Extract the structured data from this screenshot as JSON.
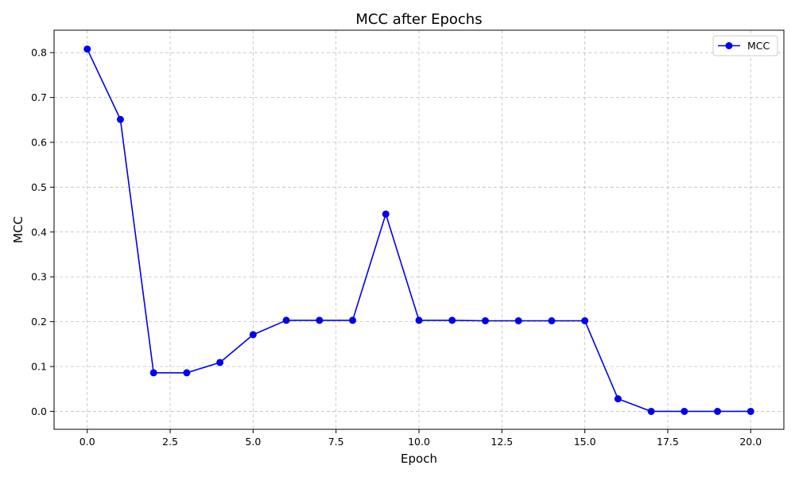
{
  "chart_data": {
    "type": "line",
    "title": "MCC after Epochs",
    "xlabel": "Epoch",
    "ylabel": "MCC",
    "xlim": [
      -1,
      21
    ],
    "ylim": [
      -0.04,
      0.85
    ],
    "xticks": [
      0.0,
      2.5,
      5.0,
      7.5,
      10.0,
      12.5,
      15.0,
      17.5,
      20.0
    ],
    "xtick_labels": [
      "0.0",
      "2.5",
      "5.0",
      "7.5",
      "10.0",
      "12.5",
      "15.0",
      "17.5",
      "20.0"
    ],
    "yticks": [
      0.0,
      0.1,
      0.2,
      0.3,
      0.4,
      0.5,
      0.6,
      0.7,
      0.8
    ],
    "ytick_labels": [
      "0.0",
      "0.1",
      "0.2",
      "0.3",
      "0.4",
      "0.5",
      "0.6",
      "0.7",
      "0.8"
    ],
    "grid": true,
    "grid_style": "dashed",
    "legend_position": "top-right",
    "series": [
      {
        "name": "MCC",
        "color": "#0000ee",
        "marker": "circle",
        "x": [
          0,
          1,
          2,
          3,
          4,
          5,
          6,
          7,
          8,
          9,
          10,
          11,
          12,
          13,
          14,
          15,
          16,
          17,
          18,
          19,
          20
        ],
        "y": [
          0.808,
          0.651,
          0.086,
          0.086,
          0.109,
          0.171,
          0.203,
          0.203,
          0.203,
          0.44,
          0.203,
          0.203,
          0.202,
          0.202,
          0.202,
          0.202,
          0.028,
          0.0,
          0.0,
          0.0,
          0.0
        ]
      }
    ]
  }
}
